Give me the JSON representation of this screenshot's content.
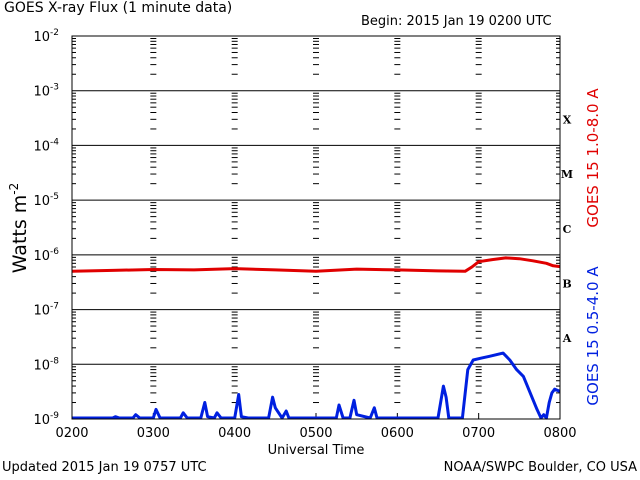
{
  "header": {
    "title": "GOES X-ray Flux (1 minute data)",
    "begin": "Begin: 2015 Jan 19 0200 UTC"
  },
  "footer": {
    "updated": "Updated 2015 Jan 19 0757 UTC",
    "credit": "NOAA/SWPC Boulder, CO USA"
  },
  "colors": {
    "long_channel": "#e00000",
    "short_channel": "#0020e0",
    "grid": "#000000"
  },
  "chart_data": {
    "type": "line",
    "xlabel": "Universal Time",
    "ylabel": "Watts m",
    "ylabel_exponent": "-2",
    "yscale": "log",
    "ylim": [
      1e-09,
      0.01
    ],
    "xlim": [
      "0200",
      "0800"
    ],
    "x_ticks": [
      "0200",
      "0300",
      "0400",
      "0500",
      "0600",
      "0700",
      "0800"
    ],
    "y_ticks": [
      {
        "base": "10",
        "exp": "-2",
        "value": 0.01
      },
      {
        "base": "10",
        "exp": "-3",
        "value": 0.001
      },
      {
        "base": "10",
        "exp": "-4",
        "value": 0.0001
      },
      {
        "base": "10",
        "exp": "-5",
        "value": 1e-05
      },
      {
        "base": "10",
        "exp": "-6",
        "value": 1e-06
      },
      {
        "base": "10",
        "exp": "-7",
        "value": 1e-07
      },
      {
        "base": "10",
        "exp": "-8",
        "value": 1e-08
      },
      {
        "base": "10",
        "exp": "-9",
        "value": 1e-09
      }
    ],
    "flare_classes": [
      {
        "label": "X",
        "value": 0.0003
      },
      {
        "label": "M",
        "value": 3e-05
      },
      {
        "label": "C",
        "value": 3e-06
      },
      {
        "label": "B",
        "value": 3e-07
      },
      {
        "label": "A",
        "value": 3e-08
      }
    ],
    "grid": true,
    "series": [
      {
        "name": "GOES 15 1.0-8.0 A",
        "x": [
          "02:00",
          "02:30",
          "03:00",
          "03:30",
          "04:00",
          "04:30",
          "05:00",
          "05:30",
          "06:00",
          "06:30",
          "06:50",
          "06:55",
          "07:00",
          "07:10",
          "07:20",
          "07:30",
          "07:40",
          "07:50",
          "07:55",
          "08:00"
        ],
        "y": [
          5e-07,
          5.2e-07,
          5.4e-07,
          5.3e-07,
          5.6e-07,
          5.3e-07,
          5e-07,
          5.5e-07,
          5.3e-07,
          5.1e-07,
          5e-07,
          6e-07,
          7.5e-07,
          8.2e-07,
          8.8e-07,
          8.5e-07,
          7.8e-07,
          7e-07,
          6.3e-07,
          6.1e-07
        ]
      },
      {
        "name": "GOES 15 0.5-4.0 A",
        "x": [
          "02:00",
          "02:30",
          "02:32",
          "02:35",
          "02:45",
          "02:47",
          "02:50",
          "03:00",
          "03:02",
          "03:05",
          "03:15",
          "03:20",
          "03:22",
          "03:25",
          "03:35",
          "03:38",
          "03:40",
          "03:45",
          "03:47",
          "03:50",
          "04:00",
          "04:03",
          "04:05",
          "04:10",
          "04:25",
          "04:28",
          "04:30",
          "04:35",
          "04:38",
          "04:40",
          "04:55",
          "05:15",
          "05:17",
          "05:20",
          "05:25",
          "05:28",
          "05:30",
          "05:40",
          "05:43",
          "05:45",
          "06:00",
          "06:30",
          "06:34",
          "06:36",
          "06:38",
          "06:44",
          "06:48",
          "06:52",
          "06:56",
          "07:02",
          "07:08",
          "07:13",
          "07:18",
          "07:23",
          "07:28",
          "07:33",
          "07:38",
          "07:43",
          "07:46",
          "07:48",
          "07:50",
          "07:52",
          "07:54",
          "07:56",
          "08:00"
        ],
        "y": [
          9e-10,
          9e-10,
          1.1e-09,
          9e-10,
          9e-10,
          1.2e-09,
          9e-10,
          9e-10,
          1.5e-09,
          9e-10,
          9e-10,
          9e-10,
          1.3e-09,
          9e-10,
          9e-10,
          2e-09,
          1.1e-09,
          9e-10,
          1.3e-09,
          9e-10,
          9e-10,
          2.8e-09,
          1.1e-09,
          9e-10,
          9e-10,
          2.5e-09,
          1.6e-09,
          9e-10,
          1.4e-09,
          9e-10,
          9e-10,
          9e-10,
          1.8e-09,
          9e-10,
          9e-10,
          2.2e-09,
          1.2e-09,
          9e-10,
          1.6e-09,
          9e-10,
          9e-10,
          9e-10,
          4e-09,
          2.5e-09,
          9e-10,
          9e-10,
          1e-09,
          8e-09,
          1.2e-08,
          1.3e-08,
          1.4e-08,
          1.5e-08,
          1.6e-08,
          1.2e-08,
          8e-09,
          6e-09,
          3e-09,
          1.5e-09,
          9e-10,
          1.2e-09,
          6e-10,
          2e-09,
          3e-09,
          3.5e-09,
          3.2e-09
        ]
      }
    ]
  }
}
